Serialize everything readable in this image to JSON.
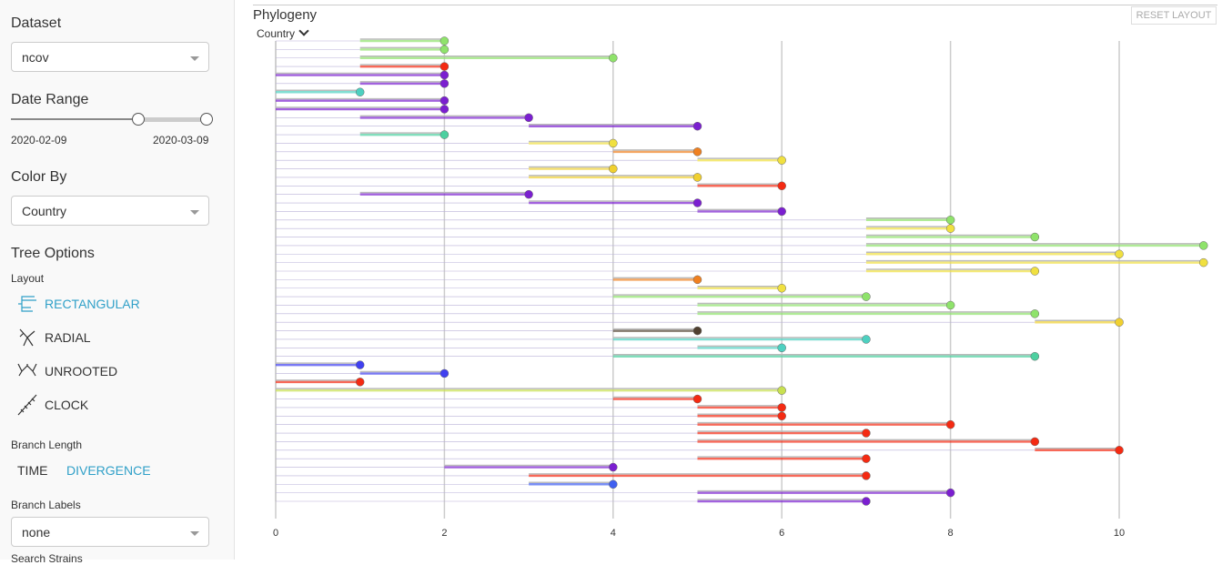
{
  "sidebar": {
    "dataset_label": "Dataset",
    "dataset": "ncov",
    "date_range_label": "Date Range",
    "date_start": "2020-02-09",
    "date_end": "2020-03-09",
    "color_by_label": "Color By",
    "color_by": "Country",
    "tree_options_label": "Tree Options",
    "layout_label": "Layout",
    "layouts": [
      "RECTANGULAR",
      "RADIAL",
      "UNROOTED",
      "CLOCK"
    ],
    "branch_length_label": "Branch Length",
    "branch_lengths": [
      "TIME",
      "DIVERGENCE"
    ],
    "branch_labels_label": "Branch Labels",
    "branch_labels": "none",
    "search_label": "Search Strains"
  },
  "chart_data": {
    "type": "phylogeny",
    "title": "Phylogeny",
    "color_by": "Country",
    "reset": "RESET LAYOUT",
    "xlim": [
      0,
      11.1
    ],
    "xticks": [
      0,
      2,
      4,
      6,
      8,
      10
    ],
    "grid": true,
    "tips": [
      {
        "parent": 1,
        "divergence": 2,
        "color": "#8fe36b"
      },
      {
        "parent": 1,
        "divergence": 2,
        "color": "#8fe36b"
      },
      {
        "parent": 1,
        "divergence": 4,
        "color": "#8fe36b"
      },
      {
        "parent": 1,
        "divergence": 2,
        "color": "#f42a12"
      },
      {
        "parent": 0,
        "divergence": 2,
        "color": "#7b1fd0"
      },
      {
        "parent": 1,
        "divergence": 2,
        "color": "#7b1fd0"
      },
      {
        "parent": 0,
        "divergence": 1,
        "color": "#4dd0c0"
      },
      {
        "parent": 0,
        "divergence": 2,
        "color": "#7b1fd0"
      },
      {
        "parent": 0,
        "divergence": 2,
        "color": "#7b1fd0"
      },
      {
        "parent": 1,
        "divergence": 3,
        "color": "#7b1fd0"
      },
      {
        "parent": 3,
        "divergence": 5,
        "color": "#7b1fd0"
      },
      {
        "parent": 1,
        "divergence": 2,
        "color": "#4dd0a0"
      },
      {
        "parent": 3,
        "divergence": 4,
        "color": "#f0e040"
      },
      {
        "parent": 4,
        "divergence": 5,
        "color": "#f08020"
      },
      {
        "parent": 5,
        "divergence": 6,
        "color": "#f0e040"
      },
      {
        "parent": 3,
        "divergence": 4,
        "color": "#f0d030"
      },
      {
        "parent": 3,
        "divergence": 5,
        "color": "#f0d030"
      },
      {
        "parent": 5,
        "divergence": 6,
        "color": "#f42a12"
      },
      {
        "parent": 1,
        "divergence": 3,
        "color": "#7b1fd0"
      },
      {
        "parent": 3,
        "divergence": 5,
        "color": "#7b1fd0"
      },
      {
        "parent": 5,
        "divergence": 6,
        "color": "#7b1fd0"
      },
      {
        "parent": 7,
        "divergence": 8,
        "color": "#8fe36b"
      },
      {
        "parent": 7,
        "divergence": 8,
        "color": "#f0e040"
      },
      {
        "parent": 7,
        "divergence": 9,
        "color": "#8fe36b"
      },
      {
        "parent": 7,
        "divergence": 11,
        "color": "#8fe36b"
      },
      {
        "parent": 7,
        "divergence": 10,
        "color": "#f0e040"
      },
      {
        "parent": 7,
        "divergence": 11,
        "color": "#f0e040"
      },
      {
        "parent": 7,
        "divergence": 9,
        "color": "#f0e040"
      },
      {
        "parent": 4,
        "divergence": 5,
        "color": "#f08020"
      },
      {
        "parent": 5,
        "divergence": 6,
        "color": "#f0e040"
      },
      {
        "parent": 4,
        "divergence": 7,
        "color": "#8fe36b"
      },
      {
        "parent": 5,
        "divergence": 8,
        "color": "#8fe36b"
      },
      {
        "parent": 5,
        "divergence": 9,
        "color": "#8fe36b"
      },
      {
        "parent": 9,
        "divergence": 10,
        "color": "#f0d030"
      },
      {
        "parent": 4,
        "divergence": 5,
        "color": "#504030"
      },
      {
        "parent": 4,
        "divergence": 7,
        "color": "#4dd0c0"
      },
      {
        "parent": 5,
        "divergence": 6,
        "color": "#4dd0c0"
      },
      {
        "parent": 4,
        "divergence": 9,
        "color": "#4dd0a0"
      },
      {
        "parent": 0,
        "divergence": 1,
        "color": "#4040f0"
      },
      {
        "parent": 1,
        "divergence": 2,
        "color": "#4040f0"
      },
      {
        "parent": 0,
        "divergence": 1,
        "color": "#f42a12"
      },
      {
        "parent": 0,
        "divergence": 6,
        "color": "#c8e050"
      },
      {
        "parent": 4,
        "divergence": 5,
        "color": "#f42a12"
      },
      {
        "parent": 5,
        "divergence": 6,
        "color": "#f42a12"
      },
      {
        "parent": 5,
        "divergence": 6,
        "color": "#f42a12"
      },
      {
        "parent": 5,
        "divergence": 8,
        "color": "#f42a12"
      },
      {
        "parent": 5,
        "divergence": 7,
        "color": "#f42a12"
      },
      {
        "parent": 5,
        "divergence": 9,
        "color": "#f42a12"
      },
      {
        "parent": 9,
        "divergence": 10,
        "color": "#f42a12"
      },
      {
        "parent": 5,
        "divergence": 7,
        "color": "#f42a12"
      },
      {
        "parent": 2,
        "divergence": 4,
        "color": "#7b1fd0"
      },
      {
        "parent": 3,
        "divergence": 7,
        "color": "#f42a12"
      },
      {
        "parent": 3,
        "divergence": 4,
        "color": "#4060f0"
      },
      {
        "parent": 5,
        "divergence": 8,
        "color": "#7b1fd0"
      },
      {
        "parent": 5,
        "divergence": 7,
        "color": "#7b1fd0"
      }
    ]
  }
}
